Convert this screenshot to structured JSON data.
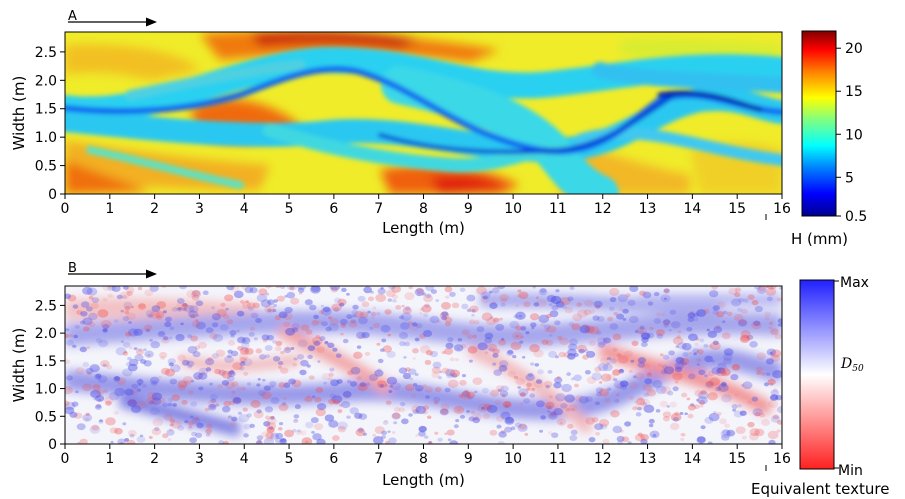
{
  "chart_data": [
    {
      "panel_label": "A",
      "type": "heatmap",
      "xlabel": "Length (m)",
      "ylabel": "Width (m)",
      "x_ticks": [
        "0",
        "1",
        "2",
        "3",
        "4",
        "5",
        "6",
        "7",
        "8",
        "9",
        "10",
        "11",
        "12",
        "13",
        "14",
        "15",
        "16"
      ],
      "y_ticks": [
        "0",
        "0.5",
        "1.0",
        "1.5",
        "2.0",
        "2.5"
      ],
      "xlim": [
        0,
        16
      ],
      "ylim": [
        0,
        2.85
      ],
      "colorbar": {
        "label": "H (mm)",
        "ticks": [
          "0.5",
          "5",
          "10",
          "15",
          "20"
        ],
        "tick_values": [
          0.5,
          5,
          10,
          15,
          20
        ],
        "range": [
          0.5,
          22
        ],
        "colormap": "jet"
      },
      "flow_arrow": true
    },
    {
      "panel_label": "B",
      "type": "heatmap",
      "xlabel": "Length (m)",
      "ylabel": "Width (m)",
      "x_ticks": [
        "0",
        "1",
        "2",
        "3",
        "4",
        "5",
        "6",
        "7",
        "8",
        "9",
        "10",
        "11",
        "12",
        "13",
        "14",
        "15",
        "16"
      ],
      "y_ticks": [
        "0",
        "0.5",
        "1.0",
        "1.5",
        "2.0",
        "2.5"
      ],
      "xlim": [
        0,
        16
      ],
      "ylim": [
        0,
        2.85
      ],
      "colorbar": {
        "label": "Equivalent texture",
        "max_label": "Max",
        "mid_label": "D",
        "mid_sub": "50",
        "min_label": "Min",
        "colormap": "red-white-blue"
      },
      "flow_arrow": true
    }
  ],
  "colors": {
    "jet": [
      "#00008f",
      "#0000ff",
      "#0080ff",
      "#00ffff",
      "#80ff80",
      "#ffff00",
      "#ff8000",
      "#ff0000",
      "#800000"
    ],
    "diverging": [
      "#ff2020",
      "#ffffff",
      "#2020ff"
    ],
    "axis": "#000000"
  }
}
